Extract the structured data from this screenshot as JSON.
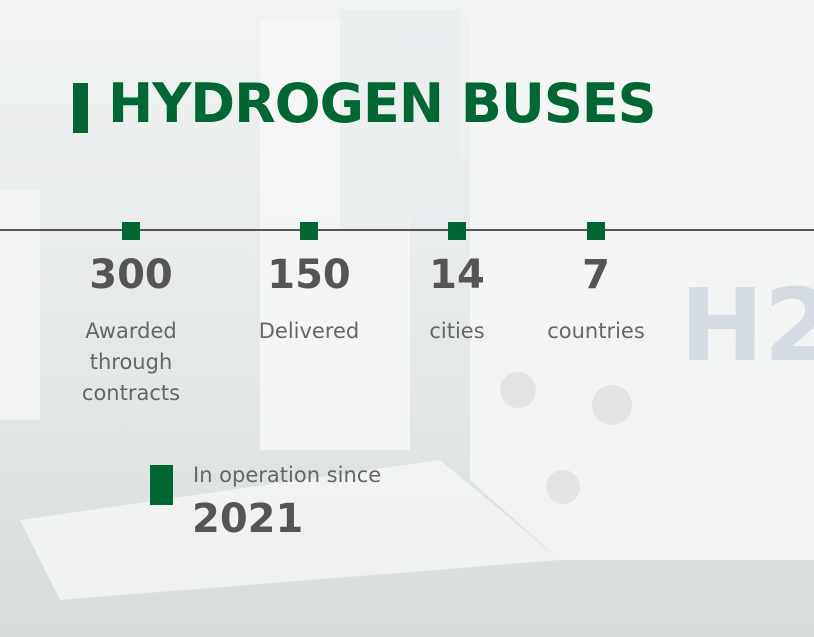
{
  "title": "HYDROGEN BUSES",
  "stats": [
    {
      "value": "300",
      "label": "Awarded through contracts"
    },
    {
      "value": "150",
      "label": "Delivered"
    },
    {
      "value": "14",
      "label": "cities"
    },
    {
      "value": "7",
      "label": "countries"
    }
  ],
  "footer": {
    "label": "In operation since",
    "value": "2021"
  }
}
